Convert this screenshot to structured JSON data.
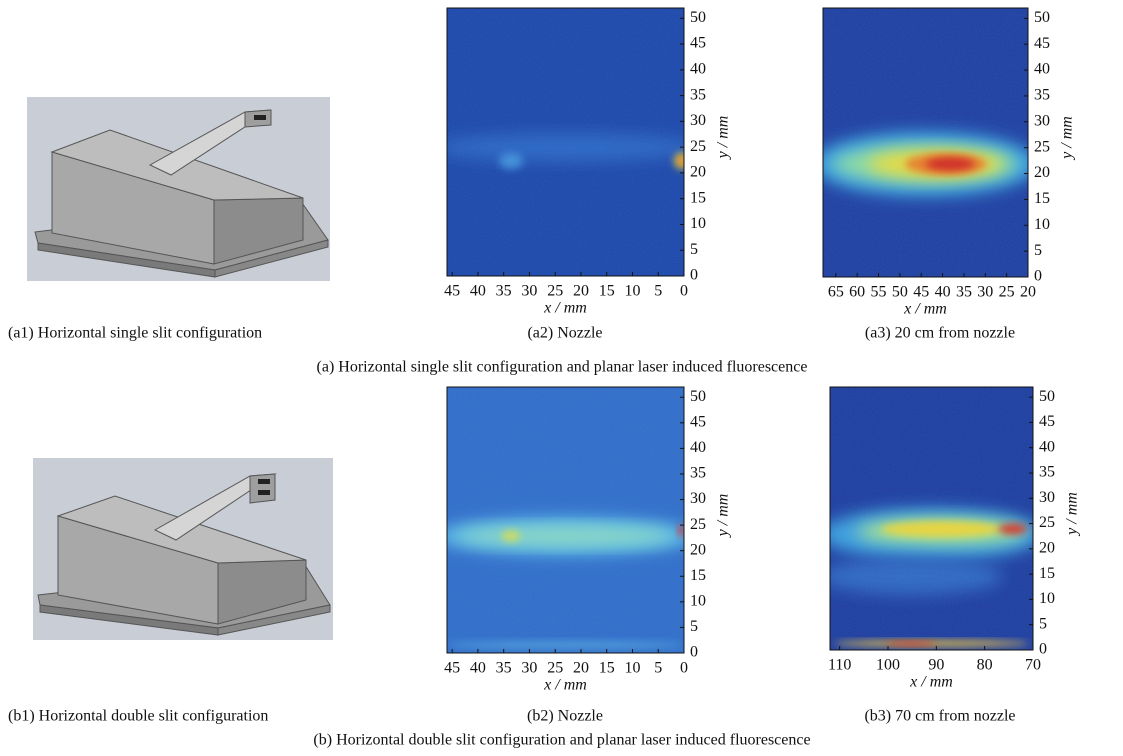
{
  "rows": [
    {
      "caption": "(a) Horizontal single slit configuration and planar laser induced fluorescence",
      "panels": [
        {
          "caption": "(a1) Horizontal single slit configuration"
        },
        {
          "caption": "(a2) Nozzle",
          "x_label": "x / mm",
          "y_label": "y / mm",
          "xlim": [
            46,
            0
          ],
          "ylim": [
            0,
            52
          ],
          "xticks": [
            45,
            40,
            35,
            30,
            25,
            20,
            15,
            10,
            5,
            0
          ],
          "yticks": [
            0,
            5,
            10,
            15,
            20,
            25,
            30,
            35,
            40,
            45,
            50
          ]
        },
        {
          "caption": "(a3) 20 cm from nozzle",
          "x_label": "x / mm",
          "y_label": "y / mm",
          "xlim": [
            68,
            20
          ],
          "ylim": [
            0,
            52
          ],
          "xticks": [
            65,
            60,
            55,
            50,
            45,
            40,
            35,
            30,
            25,
            20
          ],
          "yticks": [
            0,
            5,
            10,
            15,
            20,
            25,
            30,
            35,
            40,
            45,
            50
          ]
        }
      ]
    },
    {
      "caption": "(b) Horizontal double slit configuration and planar laser induced fluorescence",
      "panels": [
        {
          "caption": "(b1) Horizontal double slit configuration"
        },
        {
          "caption": "(b2) Nozzle",
          "x_label": "x / mm",
          "y_label": "y / mm",
          "xlim": [
            46,
            0
          ],
          "ylim": [
            0,
            52
          ],
          "xticks": [
            45,
            40,
            35,
            30,
            25,
            20,
            15,
            10,
            5,
            0
          ],
          "yticks": [
            0,
            5,
            10,
            15,
            20,
            25,
            30,
            35,
            40,
            45,
            50
          ]
        },
        {
          "caption": "(b3) 70 cm from nozzle",
          "x_label": "x / mm",
          "y_label": "y / mm",
          "xlim": [
            112,
            70
          ],
          "ylim": [
            0,
            52
          ],
          "xticks": [
            110,
            100,
            90,
            80,
            70
          ],
          "yticks": [
            0,
            5,
            10,
            15,
            20,
            25,
            30,
            35,
            40,
            45,
            50
          ]
        }
      ]
    }
  ]
}
